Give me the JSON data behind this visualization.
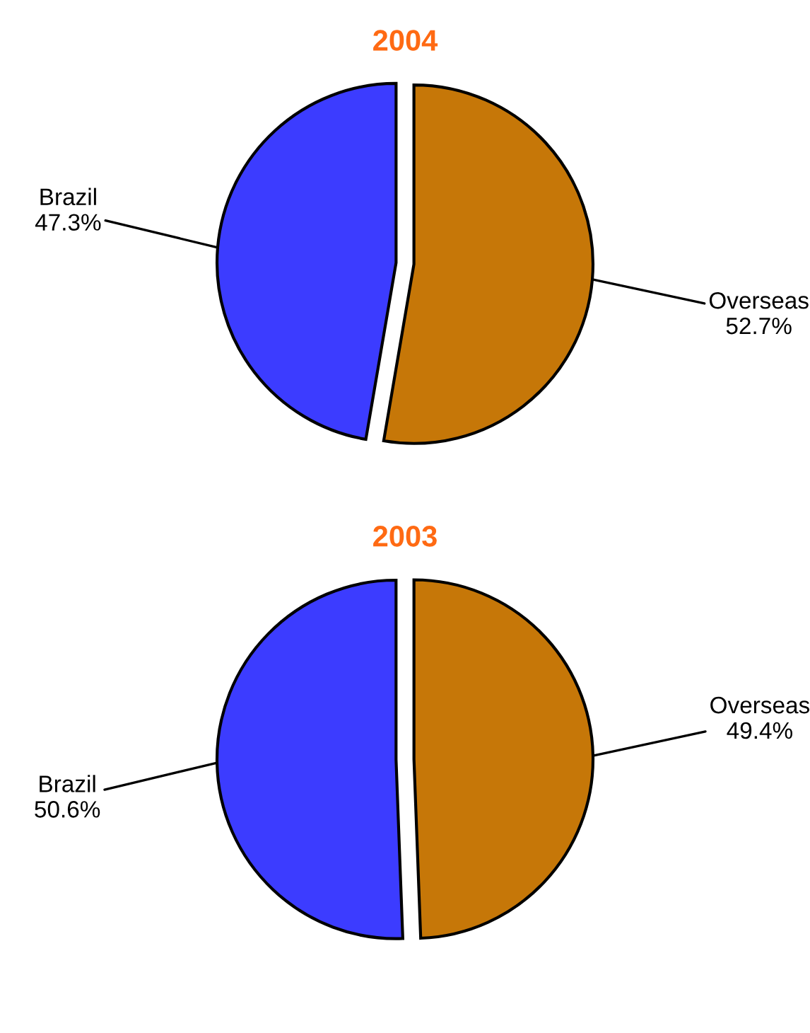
{
  "chart_data": [
    {
      "type": "pie",
      "title": "2004",
      "categories": [
        "Brazil",
        "Overseas"
      ],
      "values": [
        47.3,
        52.7
      ],
      "value_labels": [
        "47.3%",
        "52.7%"
      ],
      "colors": [
        "#3c3cff",
        "#c67708"
      ]
    },
    {
      "type": "pie",
      "title": "2003",
      "categories": [
        "Brazil",
        "Overseas"
      ],
      "values": [
        50.6,
        49.4
      ],
      "value_labels": [
        "50.6%",
        "49.4%"
      ],
      "colors": [
        "#3c3cff",
        "#c67708"
      ]
    }
  ]
}
